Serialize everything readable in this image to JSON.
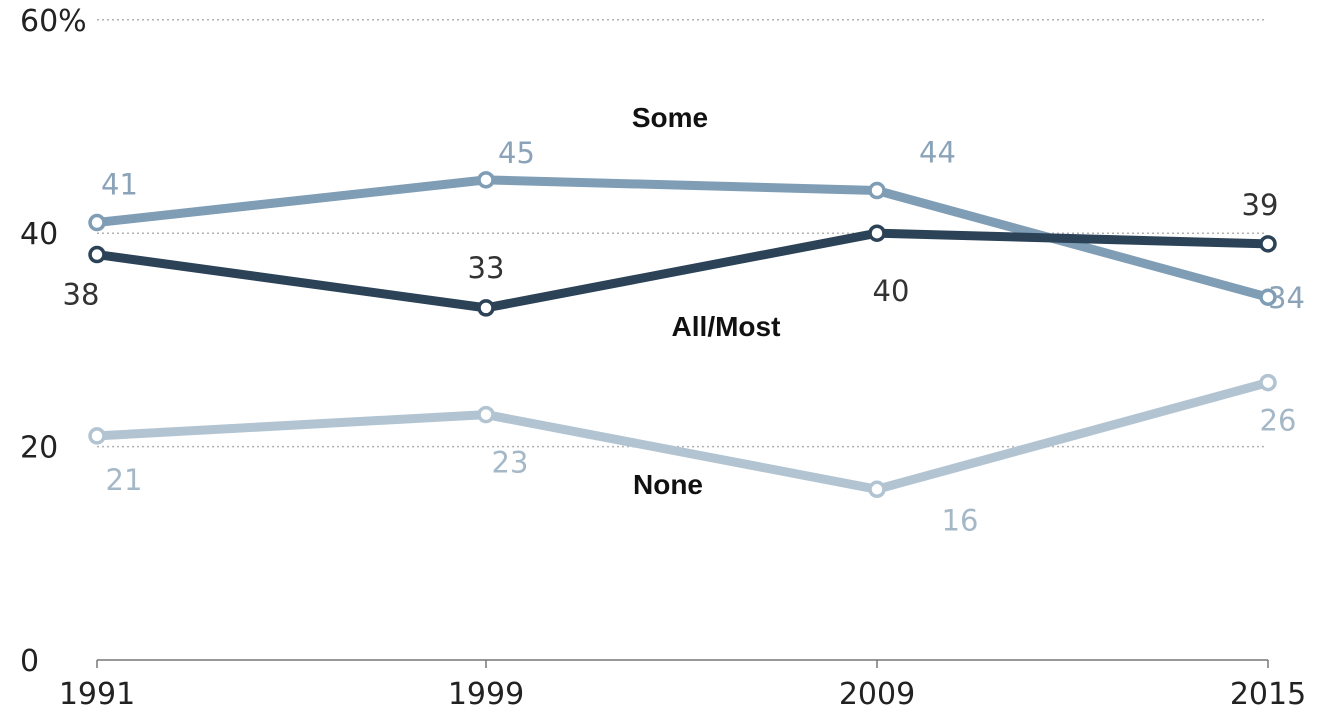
{
  "chart_data": {
    "type": "line",
    "title": "",
    "xlabel": "",
    "ylabel": "",
    "x": [
      "1991",
      "1999",
      "2009",
      "2015"
    ],
    "ylim": [
      0,
      60
    ],
    "yticks": [
      {
        "value": 0,
        "label": "0"
      },
      {
        "value": 20,
        "label": "20"
      },
      {
        "value": 40,
        "label": "40"
      },
      {
        "value": 60,
        "label": "60%"
      }
    ],
    "grid": true,
    "series": [
      {
        "name": "Some",
        "values": [
          41,
          45,
          44,
          34
        ],
        "labels": [
          "41",
          "45",
          "44",
          "34"
        ],
        "color": "#7f9db5",
        "label_color": "#8aa3b8"
      },
      {
        "name": "All/Most",
        "values": [
          38,
          33,
          40,
          39
        ],
        "labels": [
          "38",
          "33",
          "40",
          "39"
        ],
        "color": "#2b4257",
        "label_color": "#333333"
      },
      {
        "name": "None",
        "values": [
          21,
          23,
          16,
          26
        ],
        "labels": [
          "21",
          "23",
          "16",
          "26"
        ],
        "color": "#b2c4d1",
        "label_color": "#a5b8c7"
      }
    ]
  }
}
